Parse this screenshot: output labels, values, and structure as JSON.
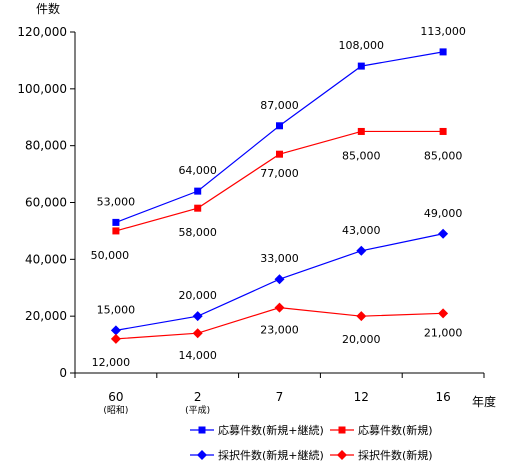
{
  "chart_data": {
    "type": "line",
    "ylabel": "件数",
    "xlabel": "年度",
    "ylim": [
      0,
      120000
    ],
    "yticks": [
      "0",
      "20,000",
      "40,000",
      "60,000",
      "80,000",
      "100,000",
      "120,000"
    ],
    "categories": [
      "60",
      "2",
      "7",
      "12",
      "16"
    ],
    "category_sublabels": [
      "(昭和)",
      "(平成)",
      "",
      "",
      ""
    ],
    "grid": false,
    "legend_position": "bottom",
    "series": [
      {
        "name": "応募件数(新規+継続)",
        "color": "#0000ff",
        "marker": "square",
        "values": [
          53000,
          64000,
          87000,
          108000,
          113000
        ],
        "labels": [
          "53,000",
          "64,000",
          "87,000",
          "108,000",
          "113,000"
        ]
      },
      {
        "name": "応募件数(新規)",
        "color": "#ff0000",
        "marker": "square",
        "values": [
          50000,
          58000,
          77000,
          85000,
          85000
        ],
        "labels": [
          "50,000",
          "58,000",
          "77,000",
          "85,000",
          "85,000"
        ]
      },
      {
        "name": "採択件数(新規+継続)",
        "color": "#0000ff",
        "marker": "diamond",
        "values": [
          15000,
          20000,
          33000,
          43000,
          49000
        ],
        "labels": [
          "15,000",
          "20,000",
          "33,000",
          "43,000",
          "49,000"
        ]
      },
      {
        "name": "採択件数(新規)",
        "color": "#ff0000",
        "marker": "diamond",
        "values": [
          12000,
          14000,
          23000,
          20000,
          21000
        ],
        "labels": [
          "12,000",
          "14,000",
          "23,000",
          "20,000",
          "21,000"
        ]
      }
    ]
  }
}
